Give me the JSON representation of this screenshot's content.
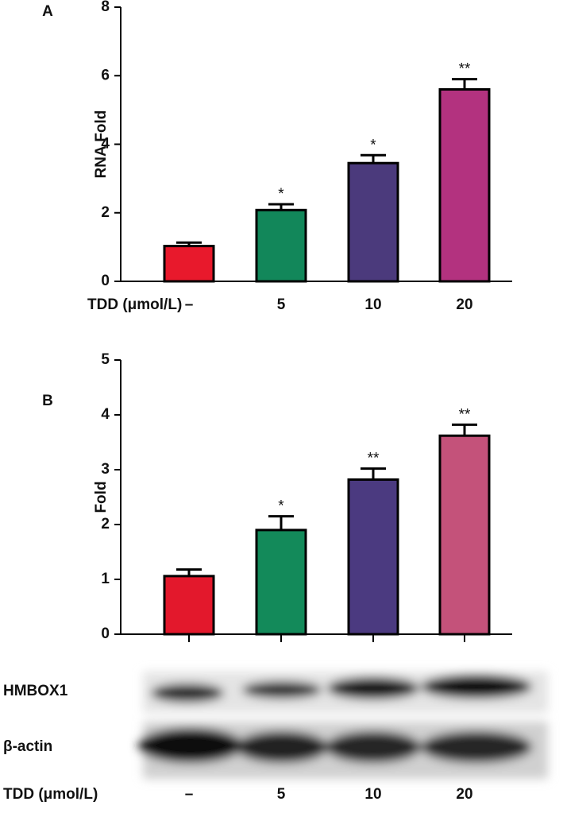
{
  "chart_data": [
    {
      "type": "bar",
      "panel": "A",
      "ylabel": "RNA Fold",
      "xlabel": "TDD (μmol/L)",
      "categories": [
        "–",
        "5",
        "10",
        "20"
      ],
      "values": [
        1.03,
        2.08,
        3.45,
        5.6
      ],
      "errors": [
        0.1,
        0.17,
        0.23,
        0.3
      ],
      "annotations": [
        null,
        "*",
        "*",
        "**"
      ],
      "colors": [
        "#e8192c",
        "#12875a",
        "#4b3a7c",
        "#b3327f"
      ],
      "ylim": [
        0,
        8
      ],
      "yticks": [
        0,
        2,
        4,
        6,
        8
      ]
    },
    {
      "type": "bar",
      "panel": "B",
      "ylabel": "Fold",
      "xlabel": "TDD (μmol/L)",
      "categories": [
        "–",
        "5",
        "10",
        "20"
      ],
      "values": [
        1.06,
        1.9,
        2.82,
        3.62
      ],
      "errors": [
        0.12,
        0.25,
        0.2,
        0.2
      ],
      "annotations": [
        null,
        "*",
        "**",
        "**"
      ],
      "colors": [
        "#e3182c",
        "#138a5a",
        "#4b3a80",
        "#c4527a"
      ],
      "ylim": [
        0,
        5
      ],
      "yticks": [
        0,
        1,
        2,
        3,
        4,
        5
      ],
      "blot_rows": [
        "HMBOX1",
        "β-actin"
      ]
    }
  ]
}
